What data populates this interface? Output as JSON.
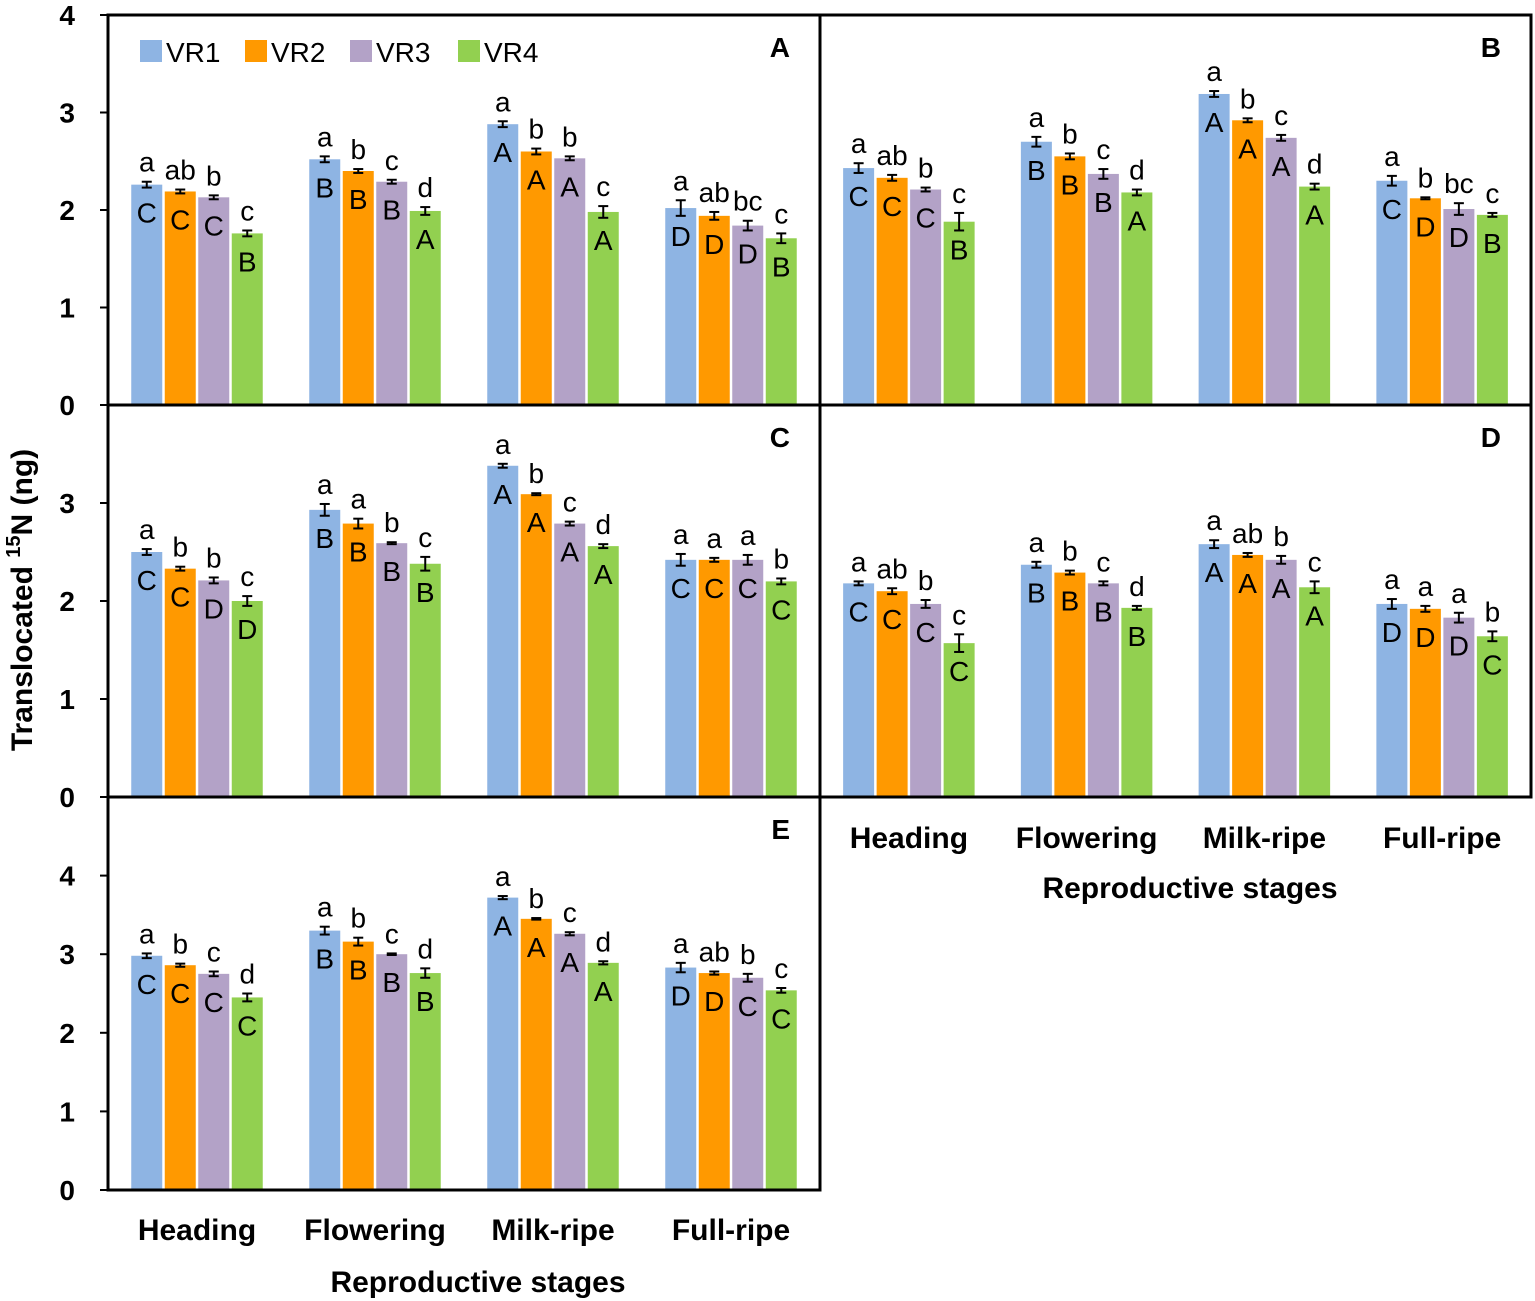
{
  "chart_data": {
    "type": "bar",
    "y_axis_title_prefix": "Translocated ",
    "y_axis_title_sup": "15",
    "y_axis_title_suffix": "N (ng)",
    "x_axis_title": "Reproductive stages",
    "categories": [
      "Heading",
      "Flowering",
      "Milk-ripe",
      "Full-ripe"
    ],
    "series_names": [
      "VR1",
      "VR2",
      "VR3",
      "VR4"
    ],
    "colors": [
      "#8eb4e3",
      "#ff9900",
      "#b3a2c7",
      "#92d050"
    ],
    "panels": [
      {
        "label": "A",
        "ylim": [
          0,
          4
        ],
        "yticks": [
          "0",
          "1",
          "2",
          "3",
          "4"
        ],
        "values": [
          [
            2.26,
            2.19,
            2.13,
            1.76
          ],
          [
            2.52,
            2.4,
            2.29,
            1.99
          ],
          [
            2.88,
            2.6,
            2.53,
            1.98
          ],
          [
            2.02,
            1.94,
            1.84,
            1.71
          ]
        ],
        "errors": [
          [
            0.03,
            0.02,
            0.02,
            0.03
          ],
          [
            0.03,
            0.02,
            0.02,
            0.04
          ],
          [
            0.03,
            0.03,
            0.02,
            0.06
          ],
          [
            0.08,
            0.04,
            0.05,
            0.05
          ]
        ],
        "sig_lower": [
          [
            "a",
            "ab",
            "b",
            "c"
          ],
          [
            "a",
            "b",
            "c",
            "d"
          ],
          [
            "a",
            "b",
            "b",
            "c"
          ],
          [
            "a",
            "ab",
            "bc",
            "c"
          ]
        ],
        "sig_upper": [
          [
            "C",
            "C",
            "C",
            "B"
          ],
          [
            "B",
            "B",
            "B",
            "A"
          ],
          [
            "A",
            "A",
            "A",
            "A"
          ],
          [
            "D",
            "D",
            "D",
            "B"
          ]
        ]
      },
      {
        "label": "B",
        "ylim": [
          0,
          4
        ],
        "yticks": [],
        "values": [
          [
            2.43,
            2.33,
            2.21,
            1.88
          ],
          [
            2.7,
            2.55,
            2.37,
            2.18
          ],
          [
            3.19,
            2.92,
            2.74,
            2.24
          ],
          [
            2.3,
            2.12,
            2.01,
            1.95
          ]
        ],
        "errors": [
          [
            0.05,
            0.03,
            0.02,
            0.09
          ],
          [
            0.05,
            0.03,
            0.05,
            0.03
          ],
          [
            0.03,
            0.02,
            0.03,
            0.03
          ],
          [
            0.05,
            0.01,
            0.06,
            0.02
          ]
        ],
        "sig_lower": [
          [
            "a",
            "ab",
            "b",
            "c"
          ],
          [
            "a",
            "b",
            "c",
            "d"
          ],
          [
            "a",
            "b",
            "c",
            "d"
          ],
          [
            "a",
            "b",
            "bc",
            "c"
          ]
        ],
        "sig_upper": [
          [
            "C",
            "C",
            "C",
            "B"
          ],
          [
            "B",
            "B",
            "B",
            "A"
          ],
          [
            "A",
            "A",
            "A",
            "A"
          ],
          [
            "C",
            "D",
            "D",
            "B"
          ]
        ]
      },
      {
        "label": "C",
        "ylim": [
          0,
          4
        ],
        "yticks": [
          "0",
          "1",
          "2",
          "3"
        ],
        "values": [
          [
            2.5,
            2.33,
            2.21,
            2.0
          ],
          [
            2.93,
            2.79,
            2.59,
            2.38
          ],
          [
            3.38,
            3.09,
            2.79,
            2.56
          ],
          [
            2.42,
            2.42,
            2.42,
            2.2
          ]
        ],
        "errors": [
          [
            0.03,
            0.02,
            0.03,
            0.05
          ],
          [
            0.06,
            0.05,
            0.01,
            0.07
          ],
          [
            0.02,
            0.01,
            0.02,
            0.02
          ],
          [
            0.06,
            0.02,
            0.05,
            0.03
          ]
        ],
        "sig_lower": [
          [
            "a",
            "b",
            "b",
            "c"
          ],
          [
            "a",
            "a",
            "b",
            "c"
          ],
          [
            "a",
            "b",
            "c",
            "d"
          ],
          [
            "a",
            "a",
            "a",
            "b"
          ]
        ],
        "sig_upper": [
          [
            "C",
            "C",
            "D",
            "D"
          ],
          [
            "B",
            "B",
            "B",
            "B"
          ],
          [
            "A",
            "A",
            "A",
            "A"
          ],
          [
            "C",
            "C",
            "C",
            "C"
          ]
        ]
      },
      {
        "label": "D",
        "ylim": [
          0,
          4
        ],
        "yticks": [],
        "values": [
          [
            2.18,
            2.1,
            1.97,
            1.57
          ],
          [
            2.37,
            2.29,
            2.18,
            1.93
          ],
          [
            2.58,
            2.47,
            2.42,
            2.14
          ],
          [
            1.97,
            1.92,
            1.83,
            1.64
          ]
        ],
        "errors": [
          [
            0.02,
            0.03,
            0.04,
            0.09
          ],
          [
            0.03,
            0.02,
            0.02,
            0.02
          ],
          [
            0.04,
            0.02,
            0.04,
            0.06
          ],
          [
            0.05,
            0.03,
            0.05,
            0.05
          ]
        ],
        "sig_lower": [
          [
            "a",
            "ab",
            "b",
            "c"
          ],
          [
            "a",
            "b",
            "c",
            "d"
          ],
          [
            "a",
            "ab",
            "b",
            "c"
          ],
          [
            "a",
            "a",
            "a",
            "b"
          ]
        ],
        "sig_upper": [
          [
            "C",
            "C",
            "C",
            "C"
          ],
          [
            "B",
            "B",
            "B",
            "B"
          ],
          [
            "A",
            "A",
            "A",
            "A"
          ],
          [
            "D",
            "D",
            "D",
            "C"
          ]
        ]
      },
      {
        "label": "E",
        "ylim": [
          0,
          5
        ],
        "yticks": [
          "0",
          "1",
          "2",
          "3",
          "4"
        ],
        "values": [
          [
            2.98,
            2.86,
            2.75,
            2.45
          ],
          [
            3.3,
            3.16,
            3.0,
            2.76
          ],
          [
            3.72,
            3.45,
            3.26,
            2.89
          ],
          [
            2.83,
            2.76,
            2.7,
            2.54
          ]
        ],
        "errors": [
          [
            0.03,
            0.02,
            0.03,
            0.05
          ],
          [
            0.05,
            0.05,
            0.01,
            0.06
          ],
          [
            0.02,
            0.01,
            0.02,
            0.02
          ],
          [
            0.06,
            0.02,
            0.05,
            0.03
          ]
        ],
        "sig_lower": [
          [
            "a",
            "b",
            "c",
            "d"
          ],
          [
            "a",
            "b",
            "c",
            "d"
          ],
          [
            "a",
            "b",
            "c",
            "d"
          ],
          [
            "a",
            "ab",
            "b",
            "c"
          ]
        ],
        "sig_upper": [
          [
            "C",
            "C",
            "C",
            "C"
          ],
          [
            "B",
            "B",
            "B",
            "B"
          ],
          [
            "A",
            "A",
            "A",
            "A"
          ],
          [
            "D",
            "D",
            "C",
            "C"
          ]
        ]
      }
    ]
  }
}
